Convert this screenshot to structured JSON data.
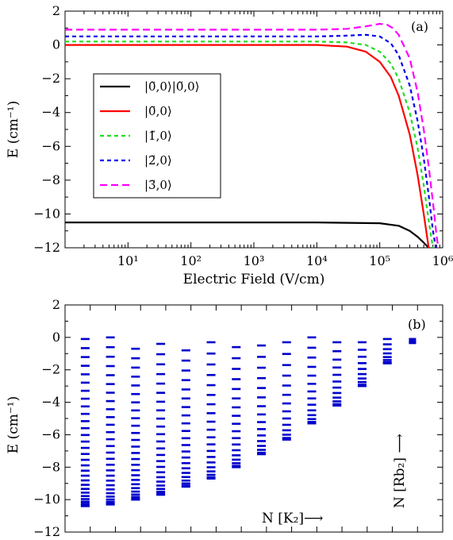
{
  "chart_data": [
    {
      "panel": "(a)",
      "type": "line",
      "xlabel": "Electric Field (V/cm)",
      "ylabel": "E (cm⁻¹)",
      "x_scale": "log",
      "xlim": [
        1,
        1000000
      ],
      "ylim": [
        -12,
        2
      ],
      "x_ticks": [
        "10¹",
        "10²",
        "10³",
        "10⁴",
        "10⁵",
        "10⁶"
      ],
      "y_ticks": [
        "2",
        "0",
        "−2",
        "−4",
        "−6",
        "−8",
        "−10",
        "−12"
      ],
      "legend_position": "left-middle",
      "series": [
        {
          "name": "|0̃,0⟩|0̃,0⟩",
          "color": "#000000",
          "dash": "solid",
          "x": [
            1,
            10,
            100,
            1000,
            10000,
            100000,
            200000,
            300000,
            400000,
            500000,
            600000
          ],
          "y": [
            -10.5,
            -10.5,
            -10.5,
            -10.5,
            -10.5,
            -10.55,
            -10.7,
            -11.0,
            -11.35,
            -11.7,
            -12
          ]
        },
        {
          "name": "|0̃,0⟩",
          "color": "#ff0000",
          "dash": "solid",
          "x": [
            1,
            10,
            100,
            1000,
            10000,
            30000,
            60000,
            100000,
            150000,
            200000,
            300000,
            400000,
            500000,
            600000
          ],
          "y": [
            0,
            0,
            0,
            0,
            0,
            -0.1,
            -0.4,
            -1.0,
            -1.9,
            -3.0,
            -5.3,
            -7.7,
            -10.0,
            -12
          ]
        },
        {
          "name": "|1̃,0⟩",
          "color": "#22dd22",
          "dash": "short",
          "x": [
            1,
            10,
            100,
            1000,
            10000,
            30000,
            60000,
            100000,
            150000,
            200000,
            300000,
            400000,
            500000,
            600000,
            700000
          ],
          "y": [
            0.2,
            0.2,
            0.2,
            0.2,
            0.2,
            0.15,
            0.0,
            -0.4,
            -1.1,
            -2.0,
            -4.0,
            -6.1,
            -8.3,
            -10.4,
            -12
          ]
        },
        {
          "name": "|2̃,0⟩",
          "color": "#0000ee",
          "dash": "short",
          "x": [
            1,
            10,
            100,
            1000,
            10000,
            30000,
            60000,
            100000,
            150000,
            200000,
            300000,
            400000,
            500000,
            600000,
            700000,
            780000
          ],
          "y": [
            0.5,
            0.5,
            0.5,
            0.5,
            0.5,
            0.55,
            0.6,
            0.5,
            0.1,
            -0.6,
            -2.4,
            -4.5,
            -6.7,
            -8.9,
            -11.0,
            -12
          ]
        },
        {
          "name": "|3̃,0⟩",
          "color": "#ff00ff",
          "dash": "long",
          "x": [
            1,
            10,
            100,
            1000,
            10000,
            30000,
            60000,
            100000,
            130000,
            160000,
            200000,
            300000,
            400000,
            500000,
            600000,
            700000,
            800000,
            850000
          ],
          "y": [
            0.9,
            0.9,
            0.9,
            0.9,
            0.9,
            0.95,
            1.1,
            1.25,
            1.2,
            1.0,
            0.6,
            -0.8,
            -2.8,
            -5.0,
            -7.2,
            -9.3,
            -11.3,
            -12
          ]
        }
      ]
    },
    {
      "panel": "(b)",
      "type": "scatter",
      "marker": "horizontal-dash",
      "color": "#0000cc",
      "ylabel": "E (cm⁻¹)",
      "ylim": [
        -12,
        2
      ],
      "y_ticks": [
        "2",
        "0",
        "−2",
        "−4",
        "−6",
        "−8",
        "−10",
        "−12"
      ],
      "annotations": [
        "N [K₂]⟶",
        "N [Rb₂] ⟶"
      ],
      "columns": [
        {
          "top": -0.1,
          "bottom": -10.4,
          "count": 30
        },
        {
          "top": 0.0,
          "bottom": -10.3,
          "count": 28
        },
        {
          "top": -0.7,
          "bottom": -10.0,
          "count": 26
        },
        {
          "top": -0.4,
          "bottom": -9.7,
          "count": 24
        },
        {
          "top": -0.8,
          "bottom": -9.2,
          "count": 22
        },
        {
          "top": -0.3,
          "bottom": -8.7,
          "count": 20
        },
        {
          "top": -0.6,
          "bottom": -8.0,
          "count": 18
        },
        {
          "top": -0.5,
          "bottom": -7.2,
          "count": 16
        },
        {
          "top": -0.3,
          "bottom": -6.3,
          "count": 14
        },
        {
          "top": 0.0,
          "bottom": -5.3,
          "count": 14
        },
        {
          "top": -0.3,
          "bottom": -4.2,
          "count": 12
        },
        {
          "top": -0.3,
          "bottom": -3.0,
          "count": 10
        },
        {
          "top": -0.1,
          "bottom": -1.6,
          "count": 8
        },
        {
          "top": -0.1,
          "bottom": -0.35,
          "count": 4
        }
      ]
    }
  ]
}
